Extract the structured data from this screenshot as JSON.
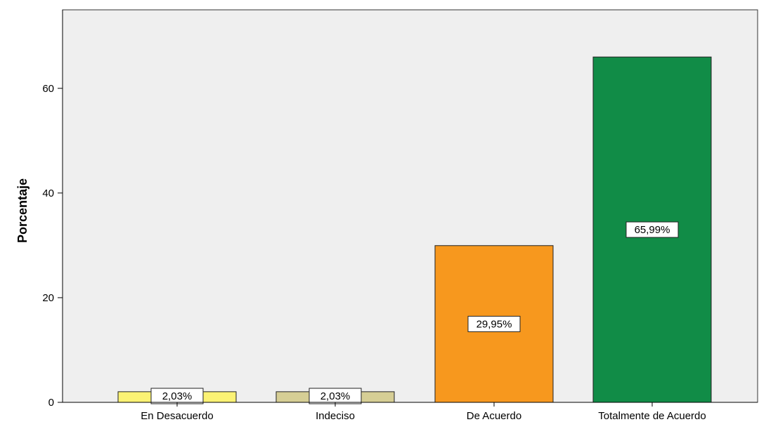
{
  "chart_data": {
    "type": "bar",
    "categories": [
      "En Desacuerdo",
      "Indeciso",
      "De Acuerdo",
      "Totalmente de Acuerdo"
    ],
    "values": [
      2.03,
      2.03,
      29.95,
      65.99
    ],
    "data_labels": [
      "2,03%",
      "2,03%",
      "29,95%",
      "65,99%"
    ],
    "bar_colors": [
      "#fbf274",
      "#d6ce95",
      "#f7981e",
      "#118c47"
    ],
    "ylabel": "Porcentaje",
    "xlabel": "",
    "ylim": [
      0,
      75
    ],
    "yticks": [
      0,
      20,
      40,
      60
    ],
    "ytick_labels": [
      "0",
      "20",
      "40",
      "60"
    ],
    "grid": false,
    "legend": "none",
    "plot_background": "#efefef"
  }
}
